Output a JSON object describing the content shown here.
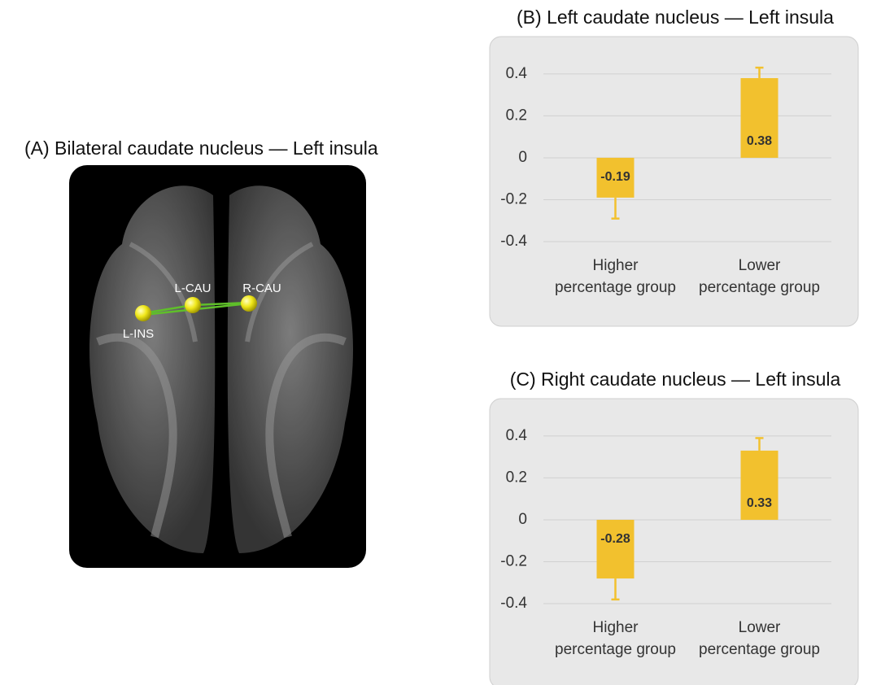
{
  "panel_a": {
    "title": "(A) Bilateral caudate nucleus — Left insula",
    "nodes": [
      "L-INS",
      "L-CAU",
      "R-CAU"
    ]
  },
  "chart_data": [
    {
      "type": "bar",
      "title": "(B) Left caudate nucleus — Left insula",
      "categories": [
        "Higher percentage group",
        "Lower percentage group"
      ],
      "values": [
        -0.19,
        0.38
      ],
      "errors": [
        0.1,
        0.05
      ],
      "color": "#f2c12e",
      "ylim": [
        -0.4,
        0.45
      ],
      "yticks": [
        -0.4,
        -0.2,
        0,
        0.2,
        0.4
      ],
      "grid": true
    },
    {
      "type": "bar",
      "title": "(C) Right caudate nucleus — Left insula",
      "categories": [
        "Higher percentage group",
        "Lower percentage group"
      ],
      "values": [
        -0.28,
        0.33
      ],
      "errors": [
        0.1,
        0.06
      ],
      "color": "#f2c12e",
      "ylim": [
        -0.4,
        0.45
      ],
      "yticks": [
        -0.4,
        -0.2,
        0,
        0.2,
        0.4
      ],
      "grid": true
    }
  ]
}
